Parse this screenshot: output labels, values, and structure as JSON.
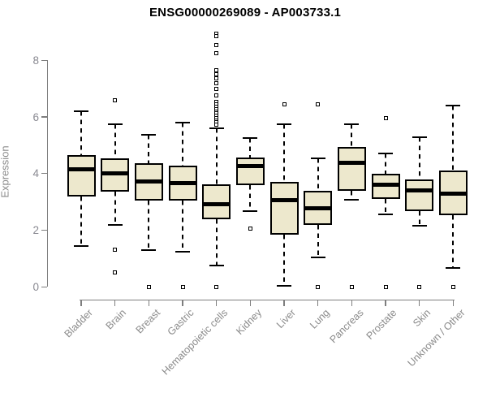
{
  "chart_data": {
    "type": "boxplot",
    "title": "ENSG00000269089 - AP003733.1",
    "xlabel": "",
    "ylabel": "Expression",
    "ylim": [
      0,
      9.0
    ],
    "yticks": [
      0,
      2,
      4,
      6,
      8
    ],
    "grid": false,
    "legend": "none",
    "categories": [
      "Bladder",
      "Brain",
      "Breast",
      "Gastric",
      "Hematopoietic cells",
      "Kidney",
      "Liver",
      "Lung",
      "Pancreas",
      "Prostate",
      "Skin",
      "Unknown / Other"
    ],
    "boxes": [
      {
        "label": "Bladder",
        "whisker_low": 1.45,
        "q1": 3.2,
        "median": 4.15,
        "q3": 4.65,
        "whisker_high": 6.2,
        "outliers": []
      },
      {
        "label": "Brain",
        "whisker_low": 2.2,
        "q1": 3.35,
        "median": 4.0,
        "q3": 4.55,
        "whisker_high": 5.75,
        "outliers": [
          6.6,
          1.3,
          0.5
        ]
      },
      {
        "label": "Breast",
        "whisker_low": 1.3,
        "q1": 3.05,
        "median": 3.73,
        "q3": 4.36,
        "whisker_high": 5.37,
        "outliers": [
          0
        ]
      },
      {
        "label": "Gastric",
        "whisker_low": 1.25,
        "q1": 3.05,
        "median": 3.67,
        "q3": 4.29,
        "whisker_high": 5.8,
        "outliers": [
          0
        ]
      },
      {
        "label": "Hematopoietic cells",
        "whisker_low": 0.75,
        "q1": 2.4,
        "median": 2.92,
        "q3": 3.62,
        "whisker_high": 5.6,
        "outliers": [
          8.95,
          8.85,
          8.55,
          8.25,
          7.65,
          7.5,
          7.35,
          7.2,
          7.0,
          6.75,
          6.52,
          6.44,
          6.36,
          6.28,
          6.2,
          6.12,
          6.04,
          5.96,
          5.88,
          5.8,
          5.72,
          0
        ]
      },
      {
        "label": "Kidney",
        "whisker_low": 2.68,
        "q1": 3.6,
        "median": 4.26,
        "q3": 4.58,
        "whisker_high": 5.26,
        "outliers": [
          2.05
        ]
      },
      {
        "label": "Liver",
        "whisker_low": 0.05,
        "q1": 1.85,
        "median": 3.05,
        "q3": 3.7,
        "whisker_high": 5.75,
        "outliers": [
          6.45
        ]
      },
      {
        "label": "Lung",
        "whisker_low": 1.05,
        "q1": 2.2,
        "median": 2.77,
        "q3": 3.38,
        "whisker_high": 4.53,
        "outliers": [
          6.45,
          0
        ]
      },
      {
        "label": "Pancreas",
        "whisker_low": 3.07,
        "q1": 3.38,
        "median": 4.37,
        "q3": 4.95,
        "whisker_high": 5.74,
        "outliers": [
          0
        ]
      },
      {
        "label": "Prostate",
        "whisker_low": 2.55,
        "q1": 3.09,
        "median": 3.61,
        "q3": 3.98,
        "whisker_high": 4.7,
        "outliers": [
          5.95,
          0
        ]
      },
      {
        "label": "Skin",
        "whisker_low": 2.15,
        "q1": 2.66,
        "median": 3.4,
        "q3": 3.78,
        "whisker_high": 5.27,
        "outliers": [
          0
        ]
      },
      {
        "label": "Unknown / Other",
        "whisker_low": 0.66,
        "q1": 2.52,
        "median": 3.3,
        "q3": 4.1,
        "whisker_high": 6.4,
        "outliers": [
          0
        ]
      }
    ],
    "colors": {
      "box_fill": "#EDE8CD",
      "box_border": "#000000",
      "median": "#000000",
      "whisker": "#000000",
      "outlier_border": "#000000",
      "axis": "#7e7e7e",
      "tick_label": "#8a8a92",
      "category_label": "#8a8a8a",
      "title": "#000000",
      "background": "#ffffff"
    }
  }
}
